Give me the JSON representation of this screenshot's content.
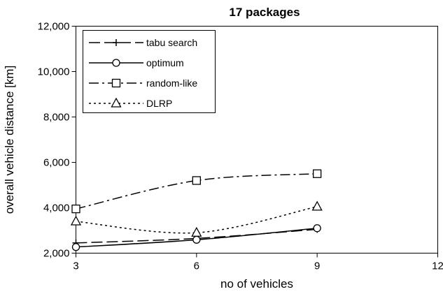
{
  "chart_data": {
    "type": "line",
    "title": "17 packages",
    "xlabel": "no of vehicles",
    "ylabel": "overall vehicle distance [km]",
    "xlim": [
      3,
      12
    ],
    "ylim": [
      2000,
      12000
    ],
    "x_ticks": [
      3,
      6,
      9,
      12
    ],
    "y_ticks": [
      2000,
      4000,
      6000,
      8000,
      10000,
      12000
    ],
    "x_tick_labels": [
      "3",
      "6",
      "9",
      "12"
    ],
    "y_tick_labels": [
      "2,000",
      "4,000",
      "6,000",
      "8,000",
      "10,000",
      "12,000"
    ],
    "grid": false,
    "legend_position": "top-left",
    "series": [
      {
        "name": "tabu search",
        "x": [
          3,
          6,
          9
        ],
        "values": [
          2450,
          2650,
          3050
        ],
        "marker": "plus",
        "line": "long-dash"
      },
      {
        "name": "optimum",
        "x": [
          3,
          6,
          9
        ],
        "values": [
          2270,
          2590,
          3100
        ],
        "marker": "circle",
        "line": "solid"
      },
      {
        "name": "random-like",
        "x": [
          3,
          6,
          9
        ],
        "values": [
          3950,
          5200,
          5500
        ],
        "marker": "square",
        "line": "dash-dot"
      },
      {
        "name": "DLRP",
        "x": [
          3,
          6,
          9
        ],
        "values": [
          3400,
          2900,
          4050
        ],
        "marker": "triangle",
        "line": "dotted"
      }
    ]
  }
}
